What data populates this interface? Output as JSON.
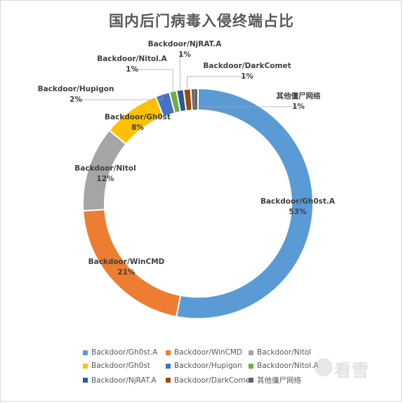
{
  "chart_data": {
    "type": "pie",
    "donut": true,
    "title": "国内后门病毒入侵终端占比",
    "legend_position": "bottom",
    "slices": [
      {
        "name": "Backdoor/Gh0st.A",
        "value": 53,
        "pct_label": "53%",
        "color": "#5b9bd5"
      },
      {
        "name": "Backdoor/WinCMD",
        "value": 21,
        "pct_label": "21%",
        "color": "#ed7d31"
      },
      {
        "name": "Backdoor/Nitol",
        "value": 12,
        "pct_label": "12%",
        "color": "#a5a5a5"
      },
      {
        "name": "Backdoor/Gh0st",
        "value": 8,
        "pct_label": "8%",
        "color": "#ffc000"
      },
      {
        "name": "Backdoor/Hupigon",
        "value": 2,
        "pct_label": "2%",
        "color": "#4472c4"
      },
      {
        "name": "Backdoor/Nitol.A",
        "value": 1,
        "pct_label": "1%",
        "color": "#70ad47"
      },
      {
        "name": "Backdoor/NjRAT.A",
        "value": 1,
        "pct_label": "1%",
        "color": "#255e91"
      },
      {
        "name": "Backdoor/DarkComet",
        "value": 1,
        "pct_label": "1%",
        "color": "#9e480e"
      },
      {
        "name": "其他僵尸网络",
        "value": 1,
        "pct_label": "1%",
        "color": "#636363"
      }
    ]
  },
  "watermark": {
    "text": "看雪"
  }
}
